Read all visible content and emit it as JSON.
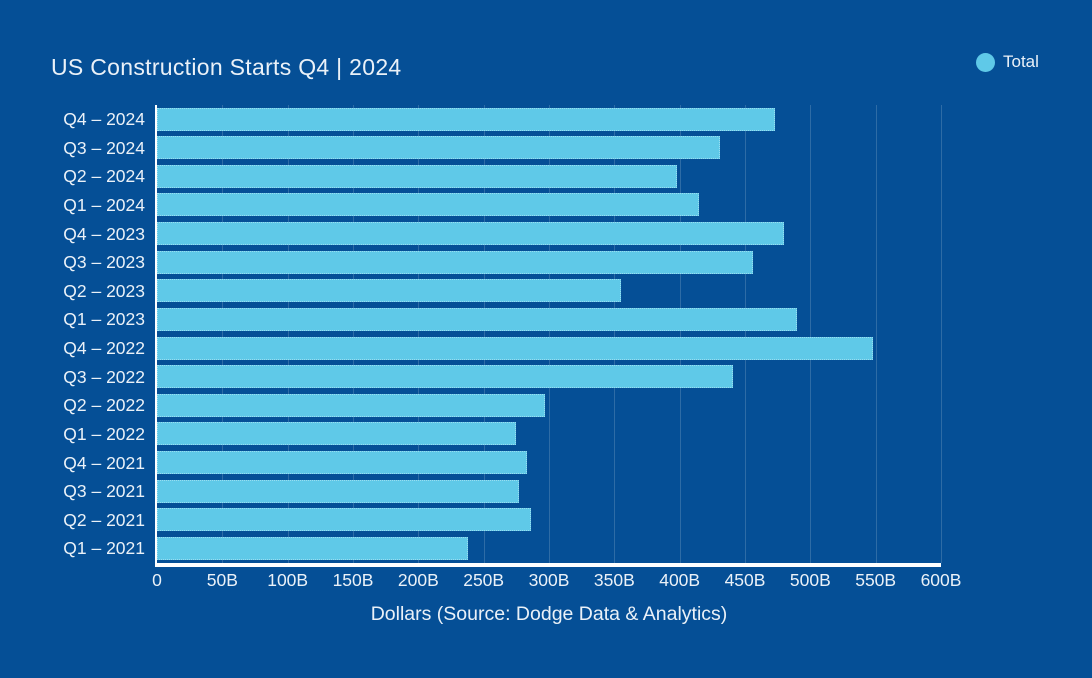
{
  "title": "US Construction Starts Q4 | 2024",
  "legend": {
    "label": "Total"
  },
  "xaxis": {
    "title": "Dollars (Source: Dodge Data & Analytics)",
    "ticks": [
      "0",
      "50B",
      "100B",
      "150B",
      "200B",
      "250B",
      "300B",
      "350B",
      "400B",
      "450B",
      "500B",
      "550B",
      "600B"
    ]
  },
  "colors": {
    "background": "#054f96",
    "bar": "#5fc9e8",
    "grid": "#2e6ca6",
    "axis": "#ffffff",
    "text": "#eaf1f8"
  },
  "chart_data": {
    "type": "bar",
    "orientation": "horizontal",
    "title": "US Construction Starts Q4 | 2024",
    "xlabel": "Dollars (Source: Dodge Data & Analytics)",
    "ylabel": "",
    "unit": "billions of dollars",
    "xlim": [
      0,
      600
    ],
    "x_tick_interval": 50,
    "grid": "vertical",
    "legend_position": "top-right",
    "series_name": "Total",
    "categories": [
      "Q4 – 2024",
      "Q3 – 2024",
      "Q2 – 2024",
      "Q1 – 2024",
      "Q4 – 2023",
      "Q3 – 2023",
      "Q2 – 2023",
      "Q1 – 2023",
      "Q4 – 2022",
      "Q3 – 2022",
      "Q2 – 2022",
      "Q1 – 2022",
      "Q4 – 2021",
      "Q3 – 2021",
      "Q2 – 2021",
      "Q1 – 2021"
    ],
    "values": [
      473,
      431,
      398,
      415,
      480,
      456,
      355,
      490,
      548,
      441,
      297,
      275,
      283,
      277,
      286,
      238
    ]
  }
}
